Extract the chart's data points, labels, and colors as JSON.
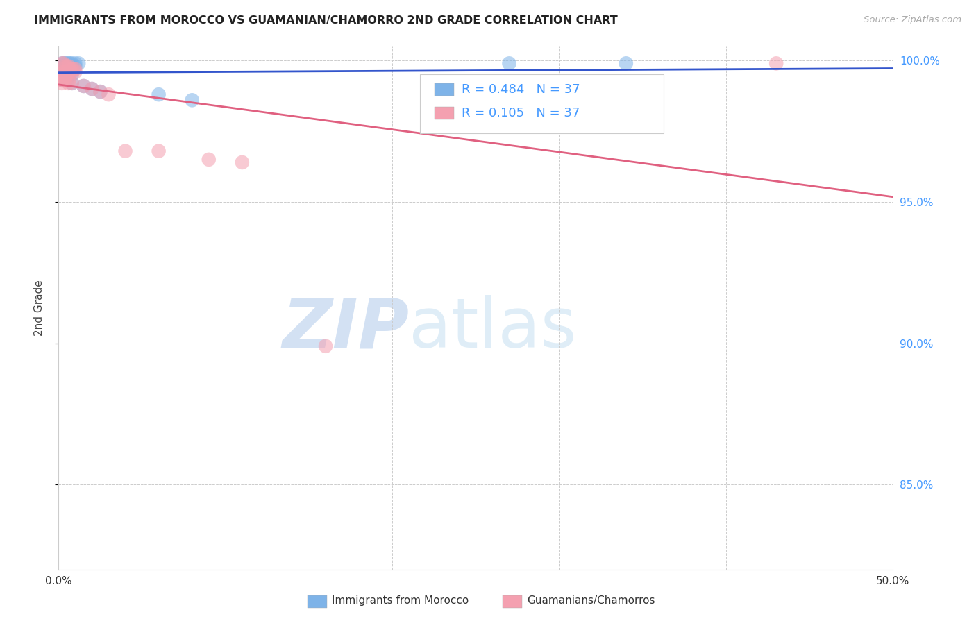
{
  "title": "IMMIGRANTS FROM MOROCCO VS GUAMANIAN/CHAMORRO 2ND GRADE CORRELATION CHART",
  "source": "Source: ZipAtlas.com",
  "ylabel": "2nd Grade",
  "legend_label1": "Immigrants from Morocco",
  "legend_label2": "Guamanians/Chamorros",
  "blue_color": "#7EB3E8",
  "pink_color": "#F4A0B0",
  "blue_line_color": "#3355CC",
  "pink_line_color": "#E06080",
  "legend_R1": "R = 0.484",
  "legend_N1": "N = 37",
  "legend_R2": "R = 0.105",
  "legend_N2": "N = 37",
  "xlim": [
    0.0,
    0.5
  ],
  "ylim": [
    0.82,
    1.005
  ],
  "yticks": [
    0.85,
    0.9,
    0.95,
    1.0
  ],
  "ytick_labels": [
    "85.0%",
    "90.0%",
    "95.0%",
    "100.0%"
  ],
  "xticks": [
    0.0,
    0.1,
    0.2,
    0.3,
    0.4,
    0.5
  ],
  "blue_x": [
    0.002,
    0.003,
    0.004,
    0.005,
    0.006,
    0.007,
    0.008,
    0.01,
    0.012,
    0.003,
    0.004,
    0.005,
    0.006,
    0.008,
    0.01,
    0.003,
    0.005,
    0.002,
    0.003,
    0.004,
    0.006,
    0.002,
    0.004,
    0.006,
    0.008,
    0.002,
    0.003,
    0.003,
    0.005,
    0.008,
    0.015,
    0.02,
    0.025,
    0.06,
    0.08,
    0.27,
    0.34
  ],
  "blue_y": [
    0.999,
    0.999,
    0.999,
    0.999,
    0.999,
    0.999,
    0.999,
    0.999,
    0.999,
    0.998,
    0.998,
    0.998,
    0.998,
    0.998,
    0.998,
    0.997,
    0.997,
    0.996,
    0.996,
    0.996,
    0.996,
    0.995,
    0.995,
    0.995,
    0.995,
    0.994,
    0.994,
    0.993,
    0.993,
    0.992,
    0.991,
    0.99,
    0.989,
    0.988,
    0.986,
    0.999,
    0.999
  ],
  "pink_x": [
    0.002,
    0.003,
    0.004,
    0.005,
    0.006,
    0.007,
    0.008,
    0.009,
    0.01,
    0.003,
    0.004,
    0.005,
    0.006,
    0.008,
    0.01,
    0.003,
    0.005,
    0.002,
    0.003,
    0.004,
    0.006,
    0.002,
    0.004,
    0.006,
    0.008,
    0.04,
    0.06,
    0.09,
    0.11,
    0.015,
    0.02,
    0.025,
    0.03,
    0.16,
    0.002,
    0.43,
    0.002
  ],
  "pink_y": [
    0.999,
    0.999,
    0.998,
    0.998,
    0.998,
    0.997,
    0.997,
    0.997,
    0.997,
    0.996,
    0.996,
    0.996,
    0.996,
    0.996,
    0.996,
    0.995,
    0.995,
    0.994,
    0.994,
    0.994,
    0.993,
    0.993,
    0.993,
    0.992,
    0.992,
    0.968,
    0.968,
    0.965,
    0.964,
    0.991,
    0.99,
    0.989,
    0.988,
    0.899,
    0.992,
    0.999,
    0.993
  ]
}
